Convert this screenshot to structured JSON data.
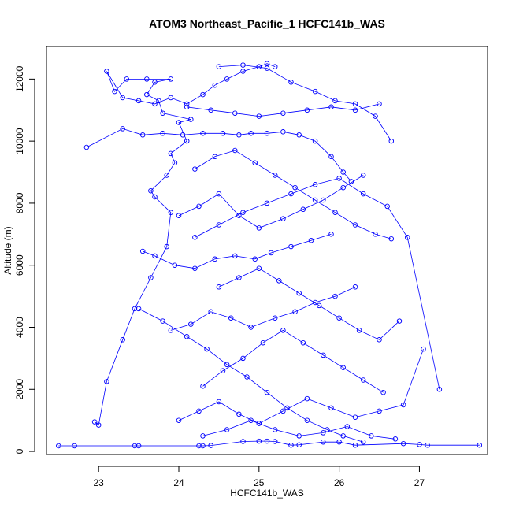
{
  "chart_data": {
    "type": "line",
    "title": "ATOM3 Northeast_Pacific_1 HCFC141b_WAS",
    "xlabel": "HCFC141b_WAS",
    "ylabel": "Altitude (m)",
    "xlim": [
      22.35,
      27.85
    ],
    "ylim": [
      -100,
      13050
    ],
    "xticks": [
      23,
      24,
      25,
      26,
      27
    ],
    "yticks": [
      0,
      2000,
      4000,
      6000,
      8000,
      10000,
      12000
    ],
    "grid": false,
    "legend": "none",
    "marker": "open-circle",
    "series_color": "#0000ff",
    "series": [
      {
        "x": [
          22.5,
          22.7,
          23.45,
          23.5,
          24.25,
          24.3,
          24.4,
          24.8,
          25.0,
          25.1,
          25.2,
          25.4,
          25.5,
          25.8,
          26.0,
          26.2,
          26.8,
          27.0,
          27.1,
          27.75
        ],
        "y": [
          180,
          180,
          180,
          180,
          180,
          180,
          190,
          320,
          330,
          330,
          320,
          200,
          210,
          300,
          300,
          200,
          250,
          220,
          200,
          200
        ]
      },
      {
        "x": [
          22.95,
          23.0,
          23.1,
          23.3,
          23.45,
          23.65,
          23.85,
          23.9,
          23.7,
          23.65,
          23.85,
          23.95,
          23.9,
          24.1,
          24.0,
          24.15,
          23.8,
          23.75,
          23.6,
          23.7,
          23.9,
          23.6,
          23.35,
          23.2,
          23.1,
          23.3,
          23.5,
          23.7,
          23.9,
          24.1,
          24.3,
          24.45,
          24.6,
          24.8,
          25.0,
          25.1,
          25.2
        ],
        "y": [
          950,
          850,
          2250,
          3600,
          4600,
          5600,
          6600,
          7700,
          8200,
          8400,
          8900,
          9300,
          9600,
          10000,
          10600,
          10700,
          10900,
          11300,
          11500,
          11900,
          12000,
          12000,
          12000,
          11600,
          12250,
          11400,
          11300,
          11200,
          11400,
          11200,
          11500,
          11800,
          12000,
          12250,
          12400,
          12500,
          12400
        ]
      },
      {
        "x": [
          22.85,
          23.3,
          23.55,
          23.8,
          24.05,
          24.3,
          24.55,
          24.75,
          24.9,
          25.1,
          25.3,
          25.5,
          25.7,
          25.9,
          26.05,
          26.15
        ],
        "y": [
          9800,
          10400,
          10200,
          10250,
          10200,
          10250,
          10250,
          10200,
          10250,
          10250,
          10300,
          10200,
          10000,
          9500,
          9000,
          8700
        ]
      },
      {
        "x": [
          23.5,
          23.8,
          24.1,
          24.35,
          24.6,
          24.85,
          25.1,
          25.35,
          25.6,
          25.85,
          26.05,
          26.3
        ],
        "y": [
          4600,
          4200,
          3700,
          3300,
          2800,
          2400,
          1900,
          1400,
          1000,
          700,
          500,
          300
        ]
      },
      {
        "x": [
          23.55,
          23.7,
          23.95,
          24.2,
          24.45,
          24.7,
          24.95,
          25.15,
          25.4,
          25.65,
          25.9
        ],
        "y": [
          6450,
          6300,
          6000,
          5900,
          6200,
          6300,
          6200,
          6400,
          6600,
          6800,
          7000
        ]
      },
      {
        "x": [
          23.9,
          24.15,
          24.4,
          24.65,
          24.9,
          25.2,
          25.45,
          25.7,
          25.95,
          26.2
        ],
        "y": [
          3900,
          4100,
          4500,
          4300,
          4000,
          4300,
          4500,
          4800,
          5000,
          5300
        ]
      },
      {
        "x": [
          24.0,
          24.25,
          24.5,
          24.75,
          25.0,
          25.3,
          25.55,
          25.8,
          26.05,
          26.3
        ],
        "y": [
          7600,
          7900,
          8300,
          7600,
          7200,
          7500,
          7800,
          8100,
          8500,
          8900
        ]
      },
      {
        "x": [
          24.3,
          24.55,
          24.8,
          25.05,
          25.3,
          25.55,
          25.8,
          26.05,
          26.3,
          26.55
        ],
        "y": [
          2100,
          2600,
          3000,
          3500,
          3900,
          3500,
          3100,
          2700,
          2300,
          1900
        ]
      },
      {
        "x": [
          24.5,
          24.75,
          25.0,
          25.25,
          25.5,
          25.75,
          26.0,
          26.25,
          26.5,
          26.75
        ],
        "y": [
          5300,
          5600,
          5900,
          5500,
          5100,
          4700,
          4300,
          3900,
          3600,
          4200
        ]
      },
      {
        "x": [
          24.1,
          24.4,
          24.7,
          25.0,
          25.3,
          25.6,
          25.9,
          26.2,
          26.5
        ],
        "y": [
          11100,
          11000,
          10900,
          10800,
          10900,
          11000,
          11100,
          11000,
          11200
        ]
      },
      {
        "x": [
          24.0,
          24.25,
          24.5,
          24.75,
          25.0,
          25.3,
          25.6,
          25.9,
          26.2,
          26.5,
          26.8,
          27.05
        ],
        "y": [
          1000,
          1300,
          1600,
          1200,
          900,
          1300,
          1700,
          1400,
          1100,
          1300,
          1500,
          3300
        ]
      },
      {
        "x": [
          24.2,
          24.5,
          24.8,
          25.1,
          25.4,
          25.7,
          26.0,
          26.3,
          26.6,
          26.85,
          27.25
        ],
        "y": [
          6900,
          7300,
          7700,
          8000,
          8300,
          8600,
          8800,
          8300,
          7900,
          6900,
          2000
        ]
      },
      {
        "x": [
          24.2,
          24.45,
          24.7,
          24.95,
          25.2,
          25.45,
          25.7,
          25.95,
          26.2,
          26.45,
          26.65
        ],
        "y": [
          9100,
          9500,
          9700,
          9300,
          8900,
          8500,
          8100,
          7700,
          7300,
          7000,
          6850
        ]
      },
      {
        "x": [
          24.5,
          24.8,
          25.1,
          25.4,
          25.7,
          25.95,
          26.2,
          26.45,
          26.65
        ],
        "y": [
          12400,
          12450,
          12350,
          11900,
          11600,
          11300,
          11200,
          10800,
          10000
        ]
      },
      {
        "x": [
          24.3,
          24.6,
          24.9,
          25.2,
          25.5,
          25.8,
          26.1,
          26.4,
          26.7
        ],
        "y": [
          500,
          700,
          1000,
          700,
          500,
          600,
          800,
          500,
          400
        ]
      }
    ]
  }
}
